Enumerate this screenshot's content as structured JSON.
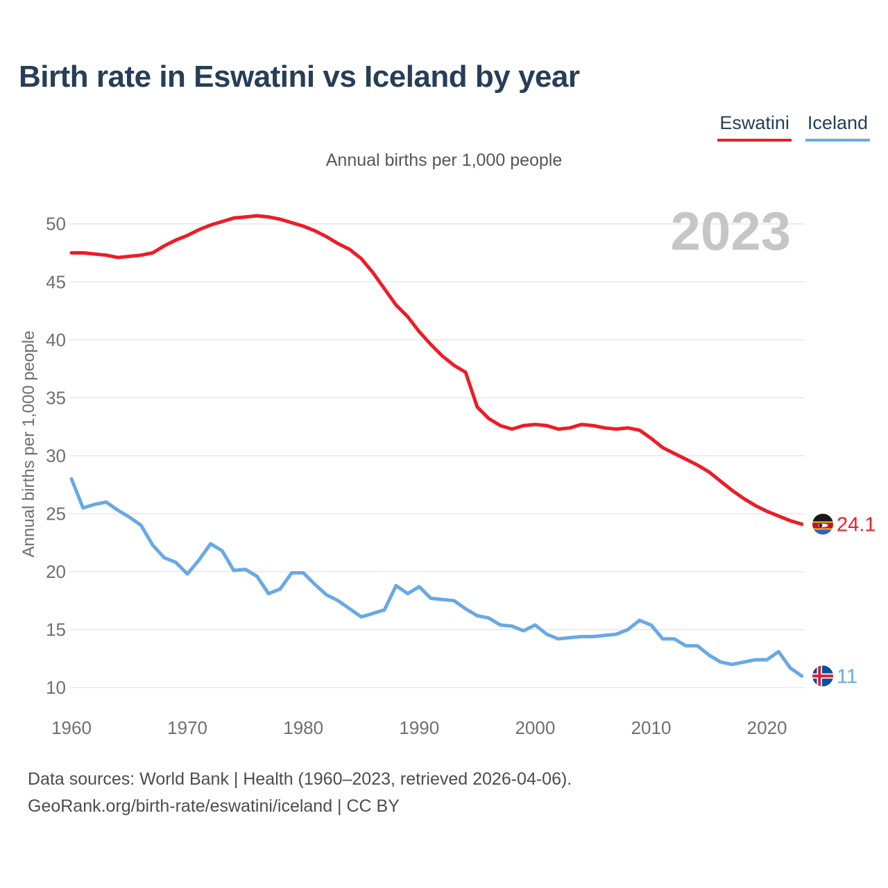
{
  "title": "Birth rate in Eswatini vs Iceland by year",
  "subtitle": "Annual births per 1,000 people",
  "watermark": "2023",
  "legend": [
    {
      "label": "Eswatini",
      "color": "#ee1c25"
    },
    {
      "label": "Iceland",
      "color": "#68a9e4"
    }
  ],
  "footer": {
    "line1": "Data sources: World Bank | Health (1960–2023, retrieved 2026-04-06).",
    "line2": "GeoRank.org/birth-rate/eswatini/iceland | CC BY"
  },
  "chart_data": {
    "type": "line",
    "title": "Birth rate in Eswatini vs Iceland by year",
    "subtitle": "Annual births per 1,000 people",
    "xlabel": "",
    "ylabel": "Annual births per 1,000 people",
    "grid": "horizontal",
    "legend_position": "top-right",
    "ylim": [
      9,
      52
    ],
    "y_ticks": [
      10,
      15,
      20,
      25,
      30,
      35,
      40,
      45,
      50
    ],
    "x_ticks": [
      1960,
      1970,
      1980,
      1990,
      2000,
      2010,
      2020
    ],
    "x": [
      1960,
      1961,
      1962,
      1963,
      1964,
      1965,
      1966,
      1967,
      1968,
      1969,
      1970,
      1971,
      1972,
      1973,
      1974,
      1975,
      1976,
      1977,
      1978,
      1979,
      1980,
      1981,
      1982,
      1983,
      1984,
      1985,
      1986,
      1987,
      1988,
      1989,
      1990,
      1991,
      1992,
      1993,
      1994,
      1995,
      1996,
      1997,
      1998,
      1999,
      2000,
      2001,
      2002,
      2003,
      2004,
      2005,
      2006,
      2007,
      2008,
      2009,
      2010,
      2011,
      2012,
      2013,
      2014,
      2015,
      2016,
      2017,
      2018,
      2019,
      2020,
      2021,
      2022,
      2023
    ],
    "series": [
      {
        "name": "Eswatini",
        "color": "#ee1c25",
        "end_label": "24.1",
        "flag": "eswatini",
        "values": [
          47.5,
          47.5,
          47.4,
          47.3,
          47.1,
          47.2,
          47.3,
          47.5,
          48.1,
          48.6,
          49.0,
          49.5,
          49.9,
          50.2,
          50.5,
          50.6,
          50.7,
          50.6,
          50.4,
          50.1,
          49.8,
          49.4,
          48.9,
          48.3,
          47.8,
          47.0,
          45.8,
          44.4,
          43.0,
          42.0,
          40.7,
          39.6,
          38.6,
          37.8,
          37.2,
          34.2,
          33.2,
          32.6,
          32.3,
          32.6,
          32.7,
          32.6,
          32.3,
          32.4,
          32.7,
          32.6,
          32.4,
          32.3,
          32.4,
          32.2,
          31.5,
          30.7,
          30.2,
          29.7,
          29.2,
          28.6,
          27.8,
          27.0,
          26.3,
          25.7,
          25.2,
          24.8,
          24.4,
          24.1
        ]
      },
      {
        "name": "Iceland",
        "color": "#68a9e4",
        "end_label": "11",
        "flag": "iceland",
        "values": [
          28.0,
          25.5,
          25.8,
          26.0,
          25.3,
          24.7,
          24.0,
          22.3,
          21.2,
          20.8,
          19.8,
          21.0,
          22.4,
          21.8,
          20.1,
          20.2,
          19.6,
          18.1,
          18.5,
          19.9,
          19.9,
          18.9,
          18.0,
          17.5,
          16.8,
          16.1,
          16.4,
          16.7,
          18.8,
          18.1,
          18.7,
          17.7,
          17.6,
          17.5,
          16.8,
          16.2,
          16.0,
          15.4,
          15.3,
          14.9,
          15.4,
          14.6,
          14.2,
          14.3,
          14.4,
          14.4,
          14.5,
          14.6,
          15.0,
          15.8,
          15.4,
          14.2,
          14.2,
          13.6,
          13.6,
          12.8,
          12.2,
          12.0,
          12.2,
          12.4,
          12.4,
          13.1,
          11.7,
          11.0
        ]
      }
    ]
  }
}
